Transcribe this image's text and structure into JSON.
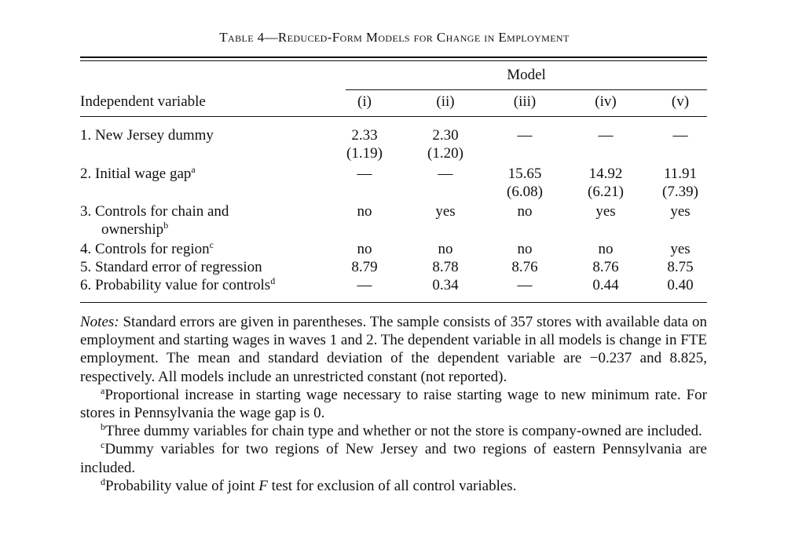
{
  "title": "Table 4—Reduced-Form Models for Change in Employment",
  "model_header": "Model",
  "independent_header": "Independent variable",
  "columns": [
    "(i)",
    "(ii)",
    "(iii)",
    "(iv)",
    "(v)"
  ],
  "rows": [
    {
      "label": "1. New Jersey dummy",
      "label_cont": "",
      "sup": "",
      "values": [
        "2.33",
        "2.30",
        "—",
        "—",
        "—"
      ],
      "se": [
        "(1.19)",
        "(1.20)",
        "",
        "",
        ""
      ]
    },
    {
      "label": "2. Initial wage gap",
      "label_cont": "",
      "sup": "a",
      "values": [
        "—",
        "—",
        "15.65",
        "14.92",
        "11.91"
      ],
      "se": [
        "",
        "",
        "(6.08)",
        "(6.21)",
        "(7.39)"
      ]
    },
    {
      "label": "3. Controls for chain and",
      "label_cont": "ownership",
      "sup": "b",
      "values": [
        "no",
        "yes",
        "no",
        "yes",
        "yes"
      ],
      "se": [
        "",
        "",
        "",
        "",
        ""
      ]
    },
    {
      "label": "4. Controls for region",
      "label_cont": "",
      "sup": "c",
      "values": [
        "no",
        "no",
        "no",
        "no",
        "yes"
      ],
      "se": [
        "",
        "",
        "",
        "",
        ""
      ]
    },
    {
      "label": "5. Standard error of regression",
      "label_cont": "",
      "sup": "",
      "values": [
        "8.79",
        "8.78",
        "8.76",
        "8.76",
        "8.75"
      ],
      "se": [
        "",
        "",
        "",
        "",
        ""
      ]
    },
    {
      "label": "6. Probability value for controls",
      "label_cont": "",
      "sup": "d",
      "values": [
        "—",
        "0.34",
        "—",
        "0.44",
        "0.40"
      ],
      "se": [
        "",
        "",
        "",
        "",
        ""
      ]
    }
  ],
  "notes": {
    "lead": "Notes:",
    "body": " Standard errors are given in parentheses. The sample consists of 357 stores with available data on employment and starting wages in waves 1 and 2. The dependent variable in all models is change in FTE employment. The mean and standard deviation of the dependent variable are −0.237 and 8.825, respectively. All models include an unrestricted constant (not reported).",
    "footnotes": [
      {
        "mark": "a",
        "text": "Proportional increase in starting wage necessary to raise starting wage to new minimum rate. For stores in Pennsylvania the wage gap is 0."
      },
      {
        "mark": "b",
        "text": "Three dummy variables for chain type and whether or not the store is company-owned are included."
      },
      {
        "mark": "c",
        "text": "Dummy variables for two regions of New Jersey and two regions of eastern Pennsylvania are included."
      },
      {
        "mark": "d",
        "text_before": "Probability value of joint ",
        "text_italic": "F",
        "text_after": " test for exclusion of all control variables."
      }
    ]
  }
}
